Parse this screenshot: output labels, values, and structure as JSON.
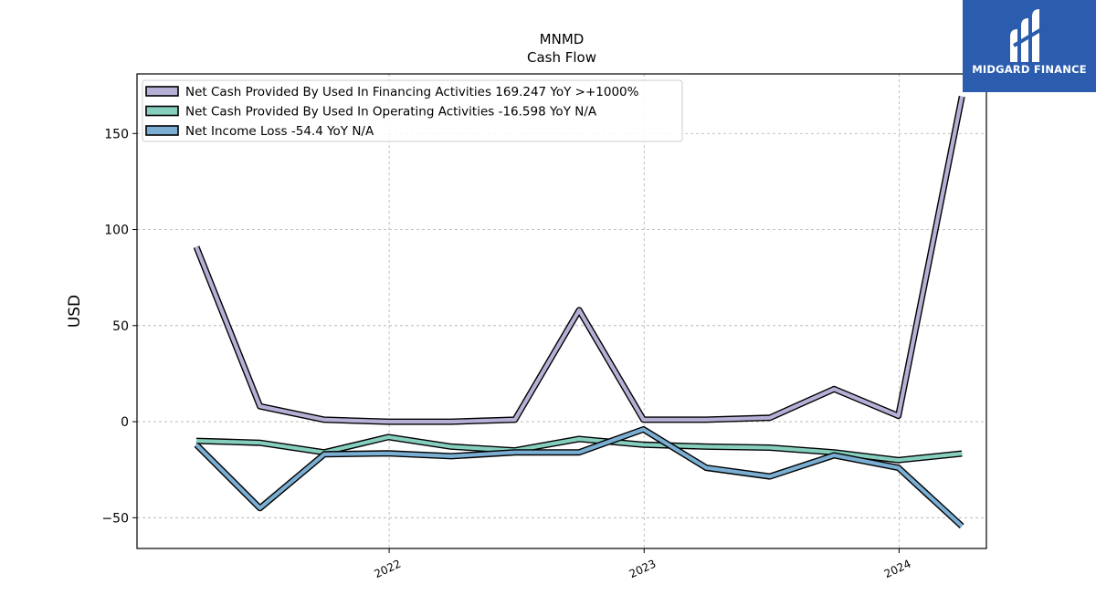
{
  "logo": {
    "text": "MIDGARD FINANCE"
  },
  "chart_data": {
    "type": "line",
    "title": "MNMD",
    "subtitle": "Cash Flow",
    "xlabel": "",
    "ylabel": "USD",
    "ylim": [
      -66,
      181
    ],
    "xlim": [
      "2021-01-05",
      "2024-05-05"
    ],
    "yticks": [
      -50,
      0,
      50,
      100,
      150
    ],
    "xticks": [
      "2022-01-01",
      "2023-01-01",
      "2024-01-01"
    ],
    "xtick_labels": [
      "2022",
      "2023",
      "2024"
    ],
    "grid": true,
    "legend_position": "top-left",
    "x": [
      "2021-03-31",
      "2021-06-30",
      "2021-09-30",
      "2021-12-31",
      "2022-03-31",
      "2022-06-30",
      "2022-09-30",
      "2022-12-31",
      "2023-03-31",
      "2023-06-30",
      "2023-09-30",
      "2023-12-31",
      "2024-03-31"
    ],
    "series": [
      {
        "name": "Net Cash Provided By Used In Financing Activities  169.247 YoY >+1000%",
        "color": "#b7b0d6",
        "values": [
          91,
          8,
          1,
          0,
          0,
          1,
          58,
          1,
          1,
          2,
          17,
          3,
          169.247
        ]
      },
      {
        "name": "Net Cash Provided By Used In Operating Activities  -16.598 YoY N/A",
        "color": "#86cfbf",
        "values": [
          -10,
          -11,
          -16,
          -8,
          -13,
          -15,
          -9,
          -12,
          -13,
          -13.5,
          -16,
          -20,
          -16.598
        ]
      },
      {
        "name": "Net Income Loss  -54.4 YoY N/A",
        "color": "#7aaed2",
        "values": [
          -12,
          -45,
          -17,
          -16.5,
          -18,
          -16,
          -16,
          -4,
          -24,
          -28.5,
          -17.5,
          -24,
          -54.4
        ]
      }
    ]
  }
}
